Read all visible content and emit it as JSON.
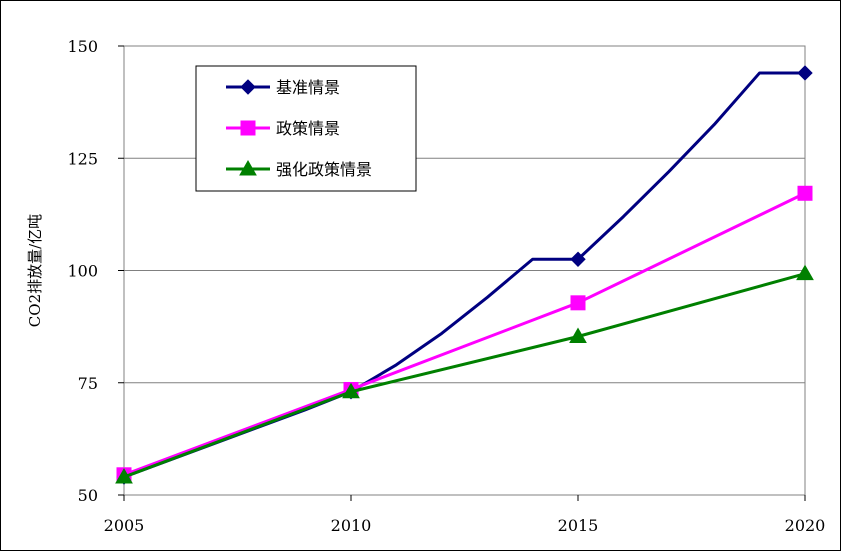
{
  "chart_data": {
    "type": "line",
    "title": "",
    "xlabel": "",
    "ylabel": "CO2排放量/亿吨",
    "x": [
      2005,
      2010,
      2015,
      2020
    ],
    "xticks": [
      "2005",
      "2010",
      "2015",
      "2020"
    ],
    "yticks": [
      "50",
      "75",
      "100",
      "125",
      "150"
    ],
    "ylim": [
      50,
      150
    ],
    "xlim": [
      2005,
      2020
    ],
    "grid": "horizontal",
    "legend_position": "top-left",
    "series": [
      {
        "name": "基准情景",
        "color": "#000080",
        "marker": "diamond",
        "values": [
          54.0,
          73.0,
          102.5,
          144.0
        ],
        "curve": [
          [
            2005,
            54.0
          ],
          [
            2007,
            61.5
          ],
          [
            2009,
            69.0
          ],
          [
            2010,
            73.0
          ],
          [
            2011,
            79.0
          ],
          [
            2012,
            86.0
          ],
          [
            2013,
            94.0
          ],
          [
            2014,
            102.5
          ],
          [
            2015,
            102.5
          ],
          [
            2016,
            112.0
          ],
          [
            2017,
            122.0
          ],
          [
            2018,
            132.5
          ],
          [
            2019,
            144.0
          ],
          [
            2020,
            144.0
          ]
        ]
      },
      {
        "name": "政策情景",
        "color": "#FF00FF",
        "marker": "square",
        "values": [
          54.5,
          73.5,
          92.8,
          117.2
        ],
        "curve": [
          [
            2005,
            54.5
          ],
          [
            2010,
            73.5
          ],
          [
            2015,
            92.8
          ],
          [
            2020,
            117.2
          ]
        ]
      },
      {
        "name": "强化政策情景",
        "color": "#008000",
        "marker": "triangle",
        "values": [
          54.0,
          73.0,
          85.3,
          99.3
        ],
        "curve": [
          [
            2005,
            54.0
          ],
          [
            2010,
            73.0
          ],
          [
            2015,
            85.3
          ],
          [
            2020,
            99.3
          ]
        ]
      }
    ]
  }
}
